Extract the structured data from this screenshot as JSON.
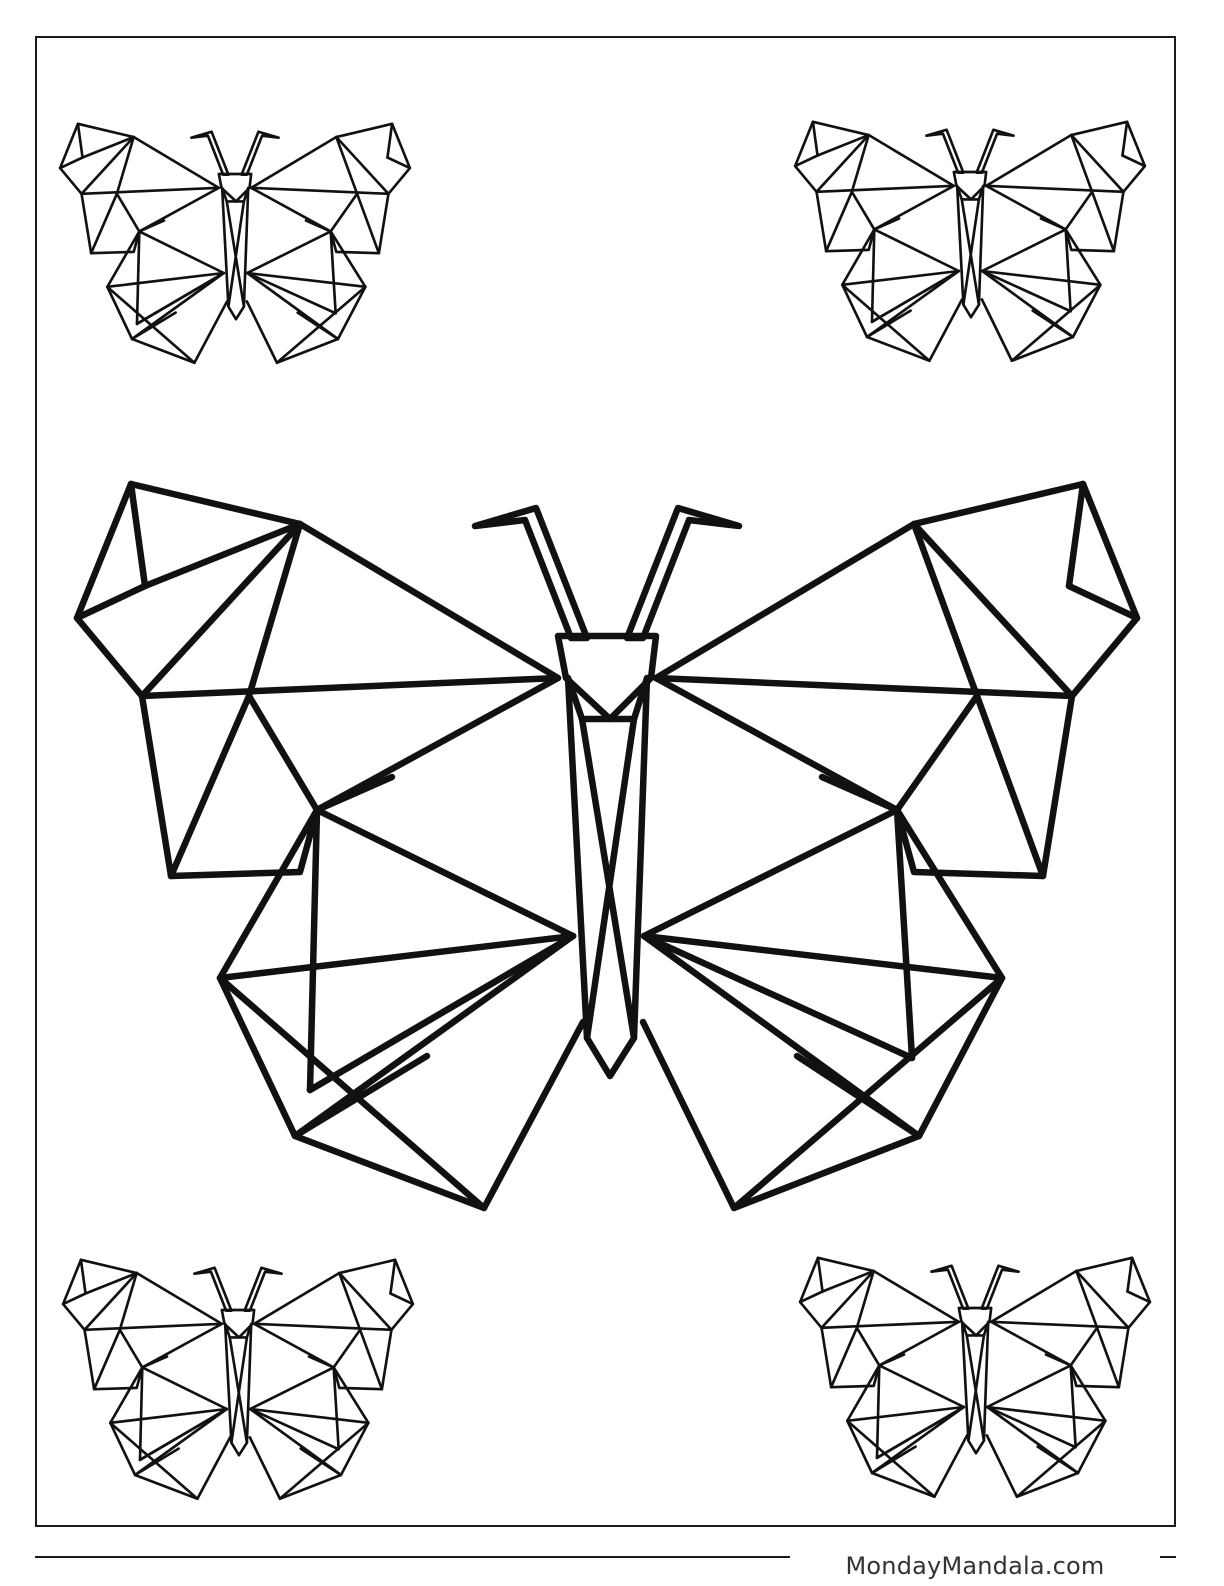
{
  "footer": {
    "credit": "MondayMandala.com"
  },
  "colors": {
    "line": "#111111",
    "background": "#ffffff",
    "credit_text": "#333333"
  },
  "subjects": {
    "main": "butterfly-large",
    "corners": [
      "butterfly-small-top-left",
      "butterfly-small-top-right",
      "butterfly-small-bottom-left",
      "butterfly-small-bottom-right"
    ]
  }
}
